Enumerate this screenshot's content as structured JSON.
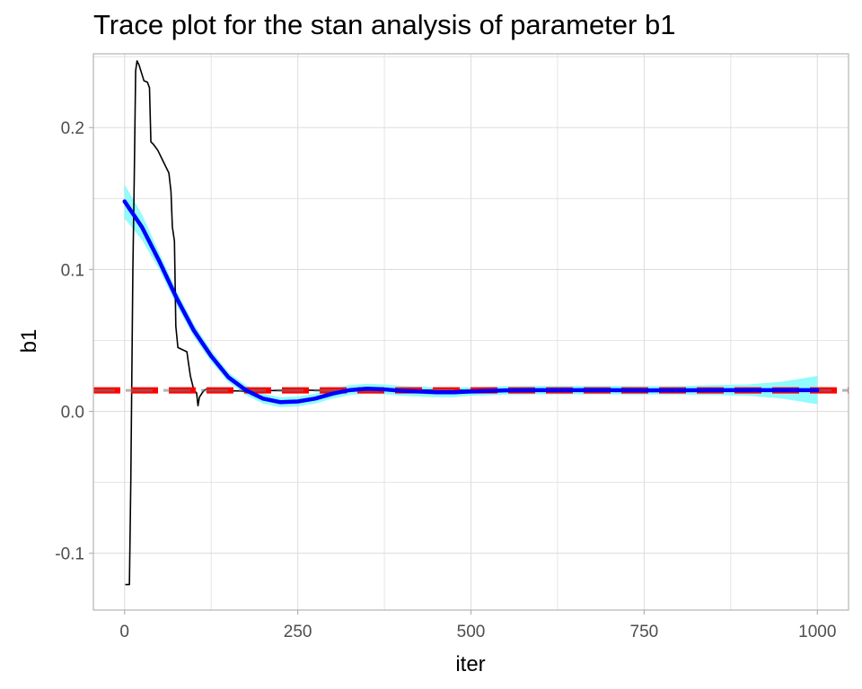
{
  "chart_data": {
    "type": "line",
    "title": "Trace plot for the stan analysis of parameter b1",
    "xlabel": "iter",
    "ylabel": "b1",
    "xlim": [
      -45,
      1045
    ],
    "ylim": [
      -0.14,
      0.252
    ],
    "x_ticks": [
      0,
      250,
      500,
      750,
      1000
    ],
    "x_tick_labels": [
      "0",
      "250",
      "500",
      "750",
      "1000"
    ],
    "y_ticks": [
      -0.1,
      0.0,
      0.1,
      0.2
    ],
    "y_tick_labels": [
      "-0.1",
      "0.0",
      "0.1",
      "0.2"
    ],
    "grid": true,
    "legend": "none",
    "colors": {
      "trace": "#000000",
      "smooth": "#0000ff",
      "ribbon": "#7ffafa",
      "reference": "#ff0000",
      "reference_overlay": "#777777",
      "grid": "#dedede",
      "panel_border": "#b3b3b3"
    },
    "trace": {
      "x": [
        1,
        7,
        9,
        12,
        14,
        16,
        18,
        21,
        28,
        33,
        36,
        38,
        42,
        48,
        55,
        62,
        64,
        67,
        69,
        72,
        74,
        77,
        90,
        92,
        95,
        100,
        104,
        106,
        108,
        112,
        115,
        120,
        130,
        140,
        150,
        160,
        180,
        200,
        220,
        240,
        260,
        280,
        300,
        350,
        400,
        500,
        600,
        700,
        800,
        900,
        1000
      ],
      "y": [
        -0.122,
        -0.122,
        -0.05,
        0.1,
        0.165,
        0.24,
        0.247,
        0.244,
        0.233,
        0.232,
        0.228,
        0.19,
        0.188,
        0.184,
        0.177,
        0.17,
        0.168,
        0.155,
        0.13,
        0.12,
        0.06,
        0.045,
        0.042,
        0.035,
        0.025,
        0.015,
        0.013,
        0.004,
        0.01,
        0.013,
        0.015,
        0.016,
        0.015,
        0.015,
        0.014,
        0.0145,
        0.014,
        0.0145,
        0.0148,
        0.0147,
        0.015,
        0.0148,
        0.015,
        0.0148,
        0.015,
        0.0149,
        0.015,
        0.015,
        0.0149,
        0.015,
        0.015
      ]
    },
    "smooth": {
      "x": [
        0,
        25,
        50,
        75,
        100,
        125,
        150,
        175,
        200,
        225,
        250,
        275,
        300,
        325,
        350,
        375,
        400,
        425,
        450,
        475,
        500,
        550,
        600,
        650,
        700,
        750,
        800,
        850,
        900,
        950,
        1000
      ],
      "y": [
        0.148,
        0.13,
        0.106,
        0.08,
        0.057,
        0.039,
        0.024,
        0.015,
        0.009,
        0.0065,
        0.007,
        0.009,
        0.0125,
        0.015,
        0.016,
        0.0155,
        0.0145,
        0.014,
        0.0135,
        0.0135,
        0.014,
        0.0148,
        0.015,
        0.015,
        0.015,
        0.0148,
        0.0149,
        0.015,
        0.015,
        0.015,
        0.015
      ],
      "ribbon_halfwidth": [
        0.012,
        0.009,
        0.006,
        0.005,
        0.0045,
        0.004,
        0.0035,
        0.0035,
        0.0035,
        0.0035,
        0.0035,
        0.0035,
        0.0035,
        0.0035,
        0.0035,
        0.0035,
        0.0035,
        0.0035,
        0.0035,
        0.0035,
        0.003,
        0.003,
        0.003,
        0.003,
        0.003,
        0.003,
        0.003,
        0.0035,
        0.004,
        0.006,
        0.01
      ]
    },
    "reference_line": {
      "y": 0.0148
    }
  }
}
